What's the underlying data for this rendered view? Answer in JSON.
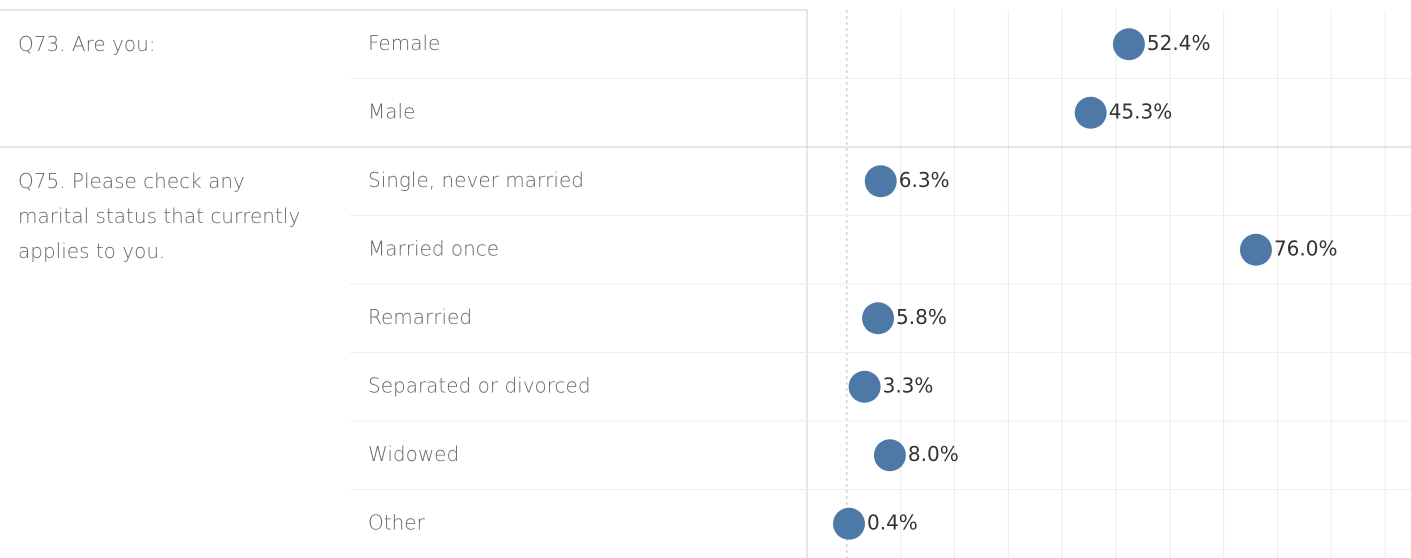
{
  "chart_data": {
    "type": "dot",
    "color": "#4e79a7",
    "groups": [
      {
        "name": "Q73. Are you:",
        "categories": [
          "Female",
          "Male"
        ],
        "values": [
          52.4,
          45.3
        ],
        "value_labels": [
          "52.4%",
          "45.3%"
        ]
      },
      {
        "name": "Q75. Please check any marital status that currently applies to you.",
        "categories": [
          "Single, never married",
          "Married once",
          "Remarried",
          "Separated or divorced",
          "Widowed",
          "Other"
        ],
        "values": [
          6.3,
          76.0,
          5.8,
          3.3,
          8.0,
          0.4
        ],
        "value_labels": [
          "6.3%",
          "76.0%",
          "5.8%",
          "3.3%",
          "8.0%",
          "0.4%"
        ]
      }
    ],
    "xlim": [
      -7.4,
      104.8
    ],
    "xticks": [
      0,
      10,
      20,
      30,
      40,
      50,
      60,
      70,
      80,
      90,
      100
    ],
    "grid": true
  }
}
